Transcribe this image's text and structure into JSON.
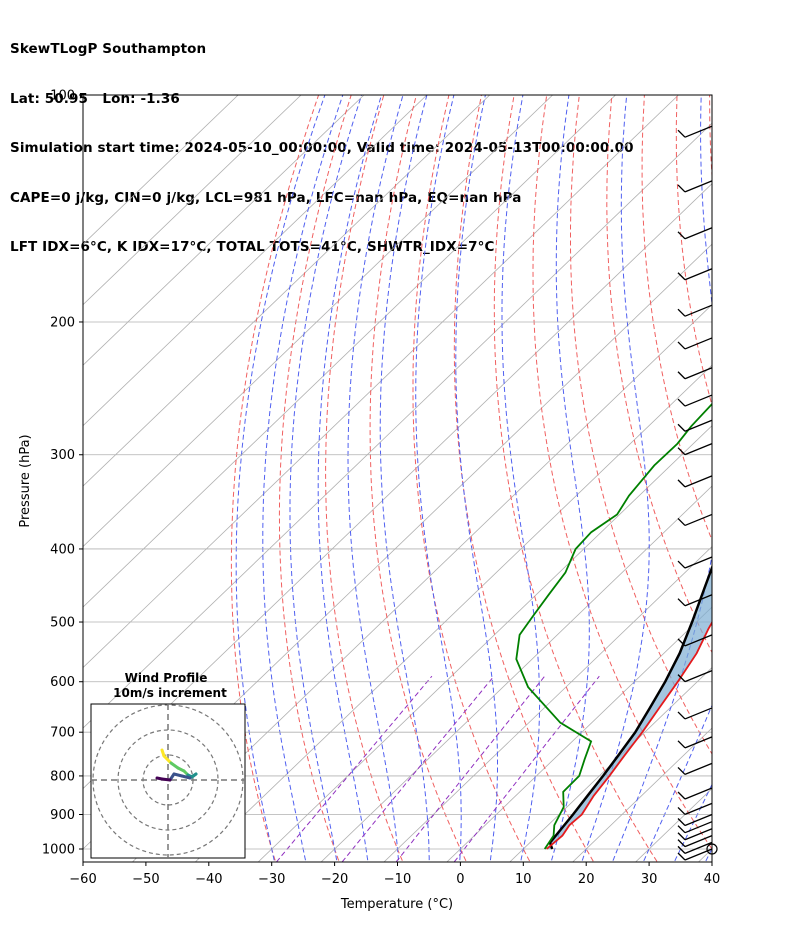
{
  "header": {
    "line1": "SkewTLogP Southampton",
    "line2": "Lat: 50.95   Lon: -1.36",
    "line3": "Simulation start time: 2024-05-10_00:00:00, Valid time: 2024-05-13T00:00:00.00",
    "line4": "CAPE=0 j/kg, CIN=0 j/kg, LCL=981 hPa, LFC=nan hPa, EQ=nan hPa",
    "line5": "LFT IDX=6°C, K IDX=17°C, TOTAL TOTS=41°C, SHWTR_IDX=7°C"
  },
  "chart_data": {
    "type": "line",
    "title": "SkewTLogP Southampton",
    "xlabel": "Temperature (°C)",
    "ylabel": "Pressure (hPa)",
    "xlim": [
      -60,
      40
    ],
    "ylim": [
      1050,
      100
    ],
    "y_scale": "log",
    "x_ticks": [
      -60,
      -50,
      -40,
      -30,
      -20,
      -10,
      0,
      10,
      20,
      30,
      40
    ],
    "y_ticks": [
      100,
      200,
      300,
      400,
      500,
      600,
      700,
      800,
      900,
      1000
    ],
    "grid": true,
    "series": [
      {
        "role": "temperature",
        "color": "#e41a1c",
        "points": [
          [
            13.7,
            1000
          ],
          [
            14.0,
            960
          ],
          [
            13.4,
            930
          ],
          [
            13.6,
            900
          ],
          [
            12.4,
            850
          ],
          [
            11.6,
            800
          ],
          [
            10.6,
            750
          ],
          [
            9.6,
            700
          ],
          [
            8.3,
            650
          ],
          [
            6.9,
            600
          ],
          [
            5.2,
            550
          ],
          [
            3.0,
            510
          ],
          [
            1.0,
            470
          ],
          [
            -1.1,
            440
          ],
          [
            -3.4,
            410
          ],
          [
            -5.3,
            380
          ],
          [
            -7.2,
            355
          ],
          [
            -9.0,
            330
          ],
          [
            -10.7,
            310
          ],
          [
            -12.8,
            290
          ],
          [
            -14.6,
            270
          ],
          [
            -16.5,
            255
          ],
          [
            -17.9,
            245
          ],
          [
            -18.4,
            235
          ],
          [
            -18.2,
            225
          ],
          [
            -19.0,
            210
          ],
          [
            -20.6,
            195
          ],
          [
            -21.6,
            185
          ],
          [
            -22.4,
            175
          ],
          [
            -24.2,
            160
          ],
          [
            -26.2,
            145
          ],
          [
            -28.0,
            132
          ],
          [
            -29.6,
            122
          ],
          [
            -31.3,
            113
          ],
          [
            -32.4,
            106
          ],
          [
            -33.5,
            100
          ]
        ]
      },
      {
        "role": "dewpoint",
        "color": "#008000",
        "points": [
          [
            13.4,
            1000
          ],
          [
            12.6,
            960
          ],
          [
            11.0,
            930
          ],
          [
            9.5,
            880
          ],
          [
            6.9,
            840
          ],
          [
            6.8,
            800
          ],
          [
            4.9,
            760
          ],
          [
            3.0,
            720
          ],
          [
            -5.0,
            680
          ],
          [
            -16.0,
            610
          ],
          [
            -22.5,
            560
          ],
          [
            -26.0,
            520
          ],
          [
            -27.0,
            490
          ],
          [
            -28.0,
            460
          ],
          [
            -29.0,
            430
          ],
          [
            -31.3,
            400
          ],
          [
            -31.6,
            380
          ],
          [
            -30.4,
            360
          ],
          [
            -31.6,
            340
          ],
          [
            -32.6,
            310
          ],
          [
            -32.5,
            290
          ],
          [
            -33.2,
            275
          ],
          [
            -33.6,
            255
          ],
          [
            -33.4,
            230
          ],
          [
            -33.2,
            210
          ],
          [
            -34.5,
            190
          ],
          [
            -35.3,
            175
          ],
          [
            -37.0,
            160
          ],
          [
            -38.7,
            150
          ],
          [
            -39.0,
            140
          ],
          [
            -37.0,
            128
          ],
          [
            -33.5,
            116
          ],
          [
            -29.3,
            107
          ],
          [
            -26.5,
            100
          ]
        ]
      },
      {
        "role": "parcel",
        "color": "#000000",
        "points": [
          [
            14.6,
            1000
          ],
          [
            13.2,
            981
          ],
          [
            12.2,
            900
          ],
          [
            11.4,
            850
          ],
          [
            10.6,
            800
          ],
          [
            9.6,
            750
          ],
          [
            8.5,
            700
          ],
          [
            6.8,
            650
          ],
          [
            4.9,
            600
          ],
          [
            2.5,
            550
          ],
          [
            -0.7,
            500
          ],
          [
            -4.4,
            450
          ],
          [
            -8.5,
            400
          ],
          [
            -13.3,
            350
          ],
          [
            -18.6,
            300
          ],
          [
            -24.1,
            260
          ],
          [
            -30.4,
            220
          ],
          [
            -34.7,
            200
          ],
          [
            -39.6,
            180
          ],
          [
            -45.3,
            160
          ],
          [
            -49.6,
            145
          ],
          [
            -54.0,
            132
          ],
          [
            -57.8,
            122
          ],
          [
            -62.4,
            110
          ],
          [
            -66.2,
            100
          ]
        ]
      }
    ],
    "reference_lines": {
      "dry_adiabats": "red dashed",
      "moist_adiabats": "blue dashed",
      "mixing_ratio": "purple dashed",
      "isotherms": "gray solid"
    },
    "wind_barbs": {
      "pressures": [
        110,
        130,
        150,
        170,
        190,
        210,
        230,
        250,
        270,
        290,
        320,
        360,
        410,
        460,
        520,
        580,
        650,
        710,
        770,
        830,
        870,
        900,
        920,
        940,
        960,
        980,
        1000
      ],
      "direction_side": "right",
      "calm_marker_at": 1000
    },
    "hodograph": {
      "title": "Wind Profile",
      "subtitle": "10m/s increment",
      "rings": 3,
      "points": [
        [
          -0.6,
          3.0
        ],
        [
          -0.4,
          2.4
        ],
        [
          0.3,
          1.7
        ],
        [
          1.0,
          1.2
        ],
        [
          1.6,
          0.9
        ],
        [
          2.0,
          0.5
        ],
        [
          2.4,
          0.3
        ],
        [
          2.8,
          0.6
        ],
        [
          2.2,
          0.2
        ],
        [
          1.4,
          0.4
        ],
        [
          0.6,
          0.6
        ],
        [
          0.2,
          0.0
        ],
        [
          -0.6,
          0.1
        ],
        [
          -1.1,
          0.2
        ]
      ]
    }
  }
}
